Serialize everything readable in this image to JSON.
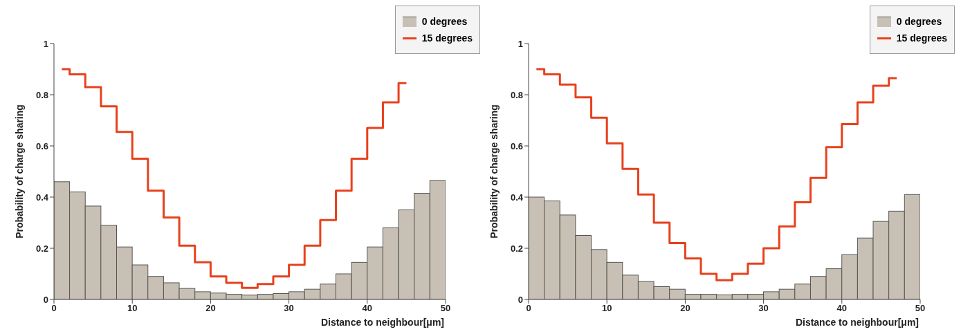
{
  "chart_data": [
    {
      "type": "histogram",
      "xlabel": "Distance to neighbour[μm]",
      "ylabel": "Probability of charge sharing",
      "bins": [
        0,
        2,
        4,
        6,
        8,
        10,
        12,
        14,
        16,
        18,
        20,
        22,
        24,
        26,
        28,
        30,
        32,
        34,
        36,
        38,
        40,
        42,
        44,
        46,
        48,
        50
      ],
      "xlim": [
        0,
        50
      ],
      "xticks": [
        0,
        10,
        20,
        30,
        40,
        50
      ],
      "ylim": [
        0,
        1
      ],
      "yticks": [
        0,
        0.2,
        0.4,
        0.6,
        0.8,
        1
      ],
      "legend": "top right",
      "grid": false,
      "series": [
        {
          "name": "0 degrees",
          "color": "#c8c0b4",
          "values": [
            0.46,
            0.42,
            0.365,
            0.29,
            0.205,
            0.135,
            0.09,
            0.065,
            0.043,
            0.03,
            0.025,
            0.02,
            0.017,
            0.02,
            0.023,
            0.03,
            0.04,
            0.06,
            0.1,
            0.145,
            0.205,
            0.28,
            0.35,
            0.415,
            0.465
          ]
        },
        {
          "name": "15 degrees",
          "type": "step",
          "color": "#e8401c",
          "x": [
            1,
            3,
            5,
            7,
            9,
            11,
            13,
            15,
            17,
            19,
            21,
            23,
            25,
            27,
            29,
            31,
            33,
            35,
            37,
            39,
            41,
            43,
            45
          ],
          "values": [
            0.9,
            0.88,
            0.83,
            0.755,
            0.655,
            0.55,
            0.425,
            0.32,
            0.21,
            0.145,
            0.09,
            0.065,
            0.045,
            0.06,
            0.09,
            0.135,
            0.21,
            0.31,
            0.425,
            0.55,
            0.67,
            0.77,
            0.845
          ]
        }
      ]
    },
    {
      "type": "histogram",
      "xlabel": "Distance to neighbour[μm]",
      "ylabel": "Probability of charge sharing",
      "bins": [
        0,
        2,
        4,
        6,
        8,
        10,
        12,
        14,
        16,
        18,
        20,
        22,
        24,
        26,
        28,
        30,
        32,
        34,
        36,
        38,
        40,
        42,
        44,
        46,
        48,
        50
      ],
      "xlim": [
        0,
        50
      ],
      "xticks": [
        0,
        10,
        20,
        30,
        40,
        50
      ],
      "ylim": [
        0,
        1
      ],
      "yticks": [
        0,
        0.2,
        0.4,
        0.6,
        0.8,
        1
      ],
      "legend": "top right",
      "grid": false,
      "series": [
        {
          "name": "0 degrees",
          "color": "#c8c0b4",
          "values": [
            0.4,
            0.385,
            0.33,
            0.25,
            0.195,
            0.145,
            0.095,
            0.07,
            0.05,
            0.04,
            0.02,
            0.02,
            0.018,
            0.02,
            0.02,
            0.03,
            0.04,
            0.06,
            0.09,
            0.12,
            0.175,
            0.24,
            0.305,
            0.345,
            0.41
          ]
        },
        {
          "name": "15 degrees",
          "type": "step",
          "color": "#e8401c",
          "x": [
            1,
            3,
            5,
            7,
            9,
            11,
            13,
            15,
            17,
            19,
            21,
            23,
            25,
            27,
            29,
            31,
            33,
            35,
            37,
            39,
            41,
            43,
            45,
            47
          ],
          "values": [
            0.9,
            0.88,
            0.84,
            0.79,
            0.71,
            0.61,
            0.51,
            0.41,
            0.3,
            0.22,
            0.16,
            0.1,
            0.075,
            0.1,
            0.14,
            0.2,
            0.285,
            0.38,
            0.475,
            0.595,
            0.685,
            0.77,
            0.835,
            0.865
          ]
        }
      ]
    }
  ]
}
